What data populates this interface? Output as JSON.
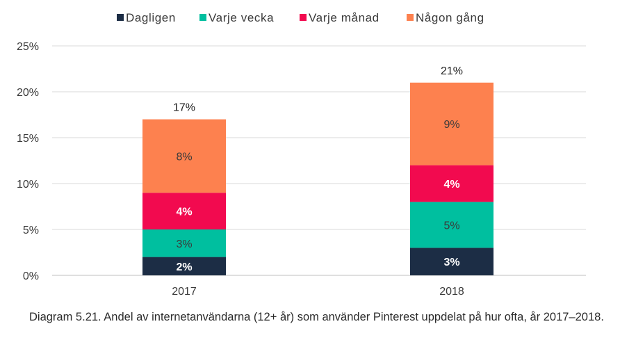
{
  "chart_data": {
    "type": "bar",
    "stacked": true,
    "categories": [
      "2017",
      "2018"
    ],
    "series": [
      {
        "name": "Dagligen",
        "values": [
          2,
          3
        ],
        "labels": [
          "2%",
          "3%"
        ],
        "color": "#1c2d45",
        "label_color": "#ffffff",
        "label_bold": true
      },
      {
        "name": "Varje vecka",
        "values": [
          3,
          5
        ],
        "labels": [
          "3%",
          "5%"
        ],
        "color": "#00bf9f",
        "label_color": "#3a3a3a",
        "label_bold": false
      },
      {
        "name": "Varje månad",
        "values": [
          4,
          4
        ],
        "labels": [
          "4%",
          "4%"
        ],
        "color": "#f20a4f",
        "label_color": "#ffffff",
        "label_bold": true
      },
      {
        "name": "Någon gång",
        "values": [
          8,
          9
        ],
        "labels": [
          "8%",
          "9%"
        ],
        "color": "#fd814f",
        "label_color": "#3a3a3a",
        "label_bold": false
      }
    ],
    "totals": [
      17,
      21
    ],
    "total_labels": [
      "17%",
      "21%"
    ],
    "y_ticks": [
      "0%",
      "5%",
      "10%",
      "15%",
      "20%",
      "25%"
    ],
    "y_tick_values": [
      0,
      5,
      10,
      15,
      20,
      25
    ],
    "ylim": [
      0,
      25
    ],
    "grid": true,
    "legend_position": "top-center"
  },
  "caption": "Diagram 5.21. Andel av internetanvändarna (12+ år) som använder Pinterest uppdelat på hur ofta, år 2017–2018."
}
